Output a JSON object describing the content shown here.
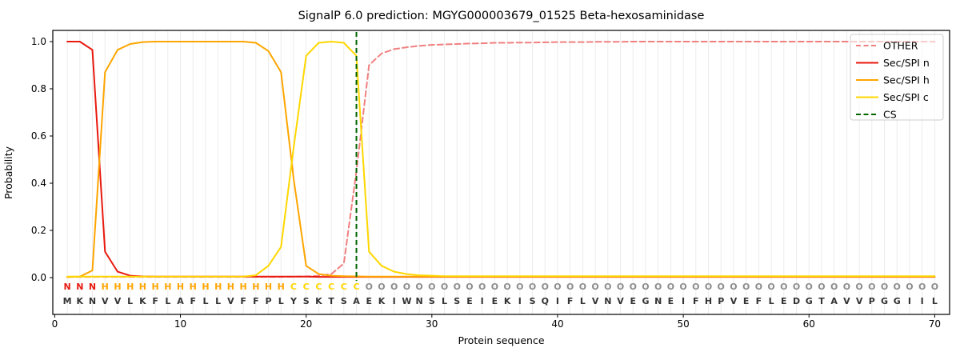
{
  "title": "SignalP 6.0 prediction: MGYG000003679_01525 Beta-hexosaminidase",
  "legend": {
    "entries": [
      {
        "label": "OTHER",
        "color": "#f08080",
        "dashed": true
      },
      {
        "label": "Sec/SPI n",
        "color": "#e8190f",
        "dashed": false
      },
      {
        "label": "Sec/SPI h",
        "color": "#ffa500",
        "dashed": false
      },
      {
        "label": "Sec/SPI c",
        "color": "#ffd700",
        "dashed": false
      },
      {
        "label": "CS",
        "color": "#006400",
        "dashed": true
      }
    ]
  },
  "chart_data": {
    "type": "line",
    "title": "SignalP 6.0 prediction: MGYG000003679_01525 Beta-hexosaminidase",
    "xlabel": "Protein sequence",
    "ylabel": "Probability",
    "xlim": [
      0,
      70
    ],
    "ylim": [
      0.0,
      1.0
    ],
    "x_ticks": [
      "0",
      "10",
      "20",
      "30",
      "40",
      "50",
      "60",
      "70"
    ],
    "y_ticks": [
      "1.0",
      "0.8",
      "0.6",
      "0.4",
      "0.2",
      "0.0"
    ],
    "grid": "vertical-per-residue",
    "legend_position": "upper right",
    "x": [
      1,
      2,
      3,
      4,
      5,
      6,
      7,
      8,
      9,
      10,
      11,
      12,
      13,
      14,
      15,
      16,
      17,
      18,
      19,
      20,
      21,
      22,
      23,
      24,
      25,
      26,
      27,
      28,
      29,
      30,
      31,
      32,
      33,
      34,
      35,
      36,
      37,
      38,
      39,
      40,
      41,
      42,
      43,
      44,
      45,
      46,
      47,
      48,
      49,
      50,
      51,
      52,
      53,
      54,
      55,
      56,
      57,
      58,
      59,
      60,
      61,
      62,
      63,
      64,
      65,
      66,
      67,
      68,
      69,
      70
    ],
    "series": [
      {
        "name": "OTHER",
        "color": "#f08080",
        "dashed": true,
        "values": [
          0.003,
          0.003,
          0.003,
          0.003,
          0.003,
          0.003,
          0.003,
          0.003,
          0.003,
          0.003,
          0.003,
          0.003,
          0.003,
          0.003,
          0.003,
          0.003,
          0.003,
          0.003,
          0.004,
          0.005,
          0.008,
          0.015,
          0.06,
          0.45,
          0.9,
          0.95,
          0.968,
          0.976,
          0.982,
          0.986,
          0.988,
          0.99,
          0.992,
          0.993,
          0.995,
          0.995,
          0.996,
          0.996,
          0.997,
          0.998,
          0.998,
          0.998,
          0.999,
          0.999,
          0.999,
          1,
          1,
          1,
          1,
          1,
          1,
          1,
          1,
          1,
          1,
          1,
          1,
          1,
          1,
          1,
          1,
          1,
          1,
          1,
          1,
          1,
          1,
          1,
          1,
          1
        ]
      },
      {
        "name": "Sec/SPI n",
        "color": "#e8190f",
        "dashed": false,
        "values": [
          1,
          1,
          0.965,
          0.11,
          0.025,
          0.008,
          0.005,
          0.004,
          0.004,
          0.004,
          0.004,
          0.004,
          0.004,
          0.004,
          0.004,
          0.004,
          0.004,
          0.004,
          0.004,
          0.004,
          0.003,
          0.003,
          0.003,
          0.003,
          0.003,
          0.003,
          0.003,
          0.003,
          0.003,
          0.003,
          0.003,
          0.003,
          0.003,
          0.003,
          0.003,
          0.003,
          0.003,
          0.003,
          0.003,
          0.003,
          0.003,
          0.003,
          0.003,
          0.003,
          0.003,
          0.003,
          0.003,
          0.003,
          0.003,
          0.003,
          0.003,
          0.003,
          0.003,
          0.003,
          0.003,
          0.003,
          0.003,
          0.003,
          0.003,
          0.003,
          0.003,
          0.003,
          0.003,
          0.003,
          0.003,
          0.003,
          0.003,
          0.003,
          0.003,
          0.003
        ]
      },
      {
        "name": "Sec/SPI h",
        "color": "#ffa500",
        "dashed": false,
        "values": [
          0.002,
          0.004,
          0.03,
          0.87,
          0.965,
          0.99,
          0.998,
          1,
          1,
          1,
          1,
          1,
          1,
          1,
          1,
          0.995,
          0.96,
          0.87,
          0.42,
          0.05,
          0.015,
          0.008,
          0.006,
          0.005,
          0.004,
          0.004,
          0.004,
          0.004,
          0.004,
          0.004,
          0.004,
          0.004,
          0.004,
          0.004,
          0.004,
          0.004,
          0.004,
          0.004,
          0.004,
          0.004,
          0.004,
          0.004,
          0.004,
          0.004,
          0.004,
          0.004,
          0.004,
          0.004,
          0.004,
          0.004,
          0.004,
          0.004,
          0.004,
          0.004,
          0.004,
          0.004,
          0.004,
          0.004,
          0.004,
          0.004,
          0.004,
          0.004,
          0.004,
          0.004,
          0.004,
          0.004,
          0.004,
          0.004,
          0.004,
          0.004
        ]
      },
      {
        "name": "Sec/SPI c",
        "color": "#ffd700",
        "dashed": false,
        "values": [
          0.004,
          0.004,
          0.004,
          0.004,
          0.004,
          0.004,
          0.004,
          0.004,
          0.004,
          0.004,
          0.004,
          0.004,
          0.004,
          0.004,
          0.004,
          0.01,
          0.05,
          0.13,
          0.55,
          0.94,
          0.995,
          1,
          0.995,
          0.94,
          0.11,
          0.05,
          0.025,
          0.015,
          0.01,
          0.008,
          0.006,
          0.006,
          0.006,
          0.006,
          0.006,
          0.006,
          0.006,
          0.006,
          0.006,
          0.006,
          0.006,
          0.006,
          0.006,
          0.006,
          0.006,
          0.006,
          0.006,
          0.006,
          0.006,
          0.006,
          0.006,
          0.006,
          0.006,
          0.006,
          0.006,
          0.006,
          0.006,
          0.006,
          0.006,
          0.006,
          0.006,
          0.006,
          0.006,
          0.006,
          0.006,
          0.006,
          0.006,
          0.006,
          0.006,
          0.006
        ]
      }
    ],
    "cs_line": {
      "name": "CS",
      "position": 24,
      "color": "#006400",
      "dashed": true
    },
    "sequence": "MKNVVLKFLAFLLVFFPLYSKTSAEKIWNSLSEIEKISQIFLVNVEGNEIFHPVEFLEDGTAVVPGGIIL",
    "region_labels": "NNNHHHHHHHHHHHHHHHCCCCCCOOOOOOOOOOOOOOOOOOOOOOOOOOOOOOOOOOOOOOOOOOOOOO",
    "letter_colors": {
      "N": "#e8190f",
      "H": "#ffa500",
      "C": "#ffd700",
      "O": "#8c8c8c",
      "seq": "#333333"
    }
  },
  "colors": {
    "grid": "#ececec",
    "axis": "#000000",
    "legend_border": "#cccccc"
  }
}
